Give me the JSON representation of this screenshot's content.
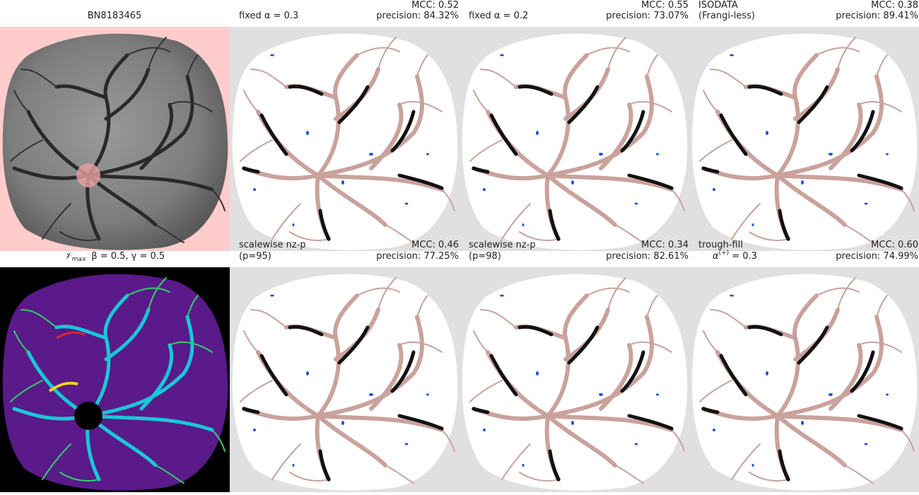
{
  "panels": [
    {
      "title": "BN8183465"
    },
    {
      "left": [
        "fixed α = 0.3"
      ],
      "mcc": "MCC: 0.52",
      "precision": "precision: 84.32%"
    },
    {
      "left": [
        "fixed α = 0.2"
      ],
      "mcc": "MCC: 0.55",
      "precision": "precision: 73.07%"
    },
    {
      "left": [
        "ISODATA",
        "(Frangi-less)"
      ],
      "mcc": "MCC: 0.38",
      "precision": "precision: 89.41%"
    },
    {
      "title": {
        "symbol": "𝒱",
        "subscript": "max",
        "rest": "β = 0.5, γ = 0.5"
      }
    },
    {
      "left": [
        "scalewise nz-p",
        "(p=95)"
      ],
      "mcc": "MCC: 0.46",
      "precision": "precision: 77.25%"
    },
    {
      "left": [
        "scalewise nz-p",
        "(p=98)"
      ],
      "mcc": "MCC: 0.34",
      "precision": "precision: 82.61%"
    },
    {
      "left": [
        "trough-fill",
        {
          "base": "α",
          "sup": "(+)",
          "rest": " = 0.3"
        }
      ],
      "mcc": "MCC: 0.60",
      "precision": "precision: 74.99%"
    }
  ]
}
